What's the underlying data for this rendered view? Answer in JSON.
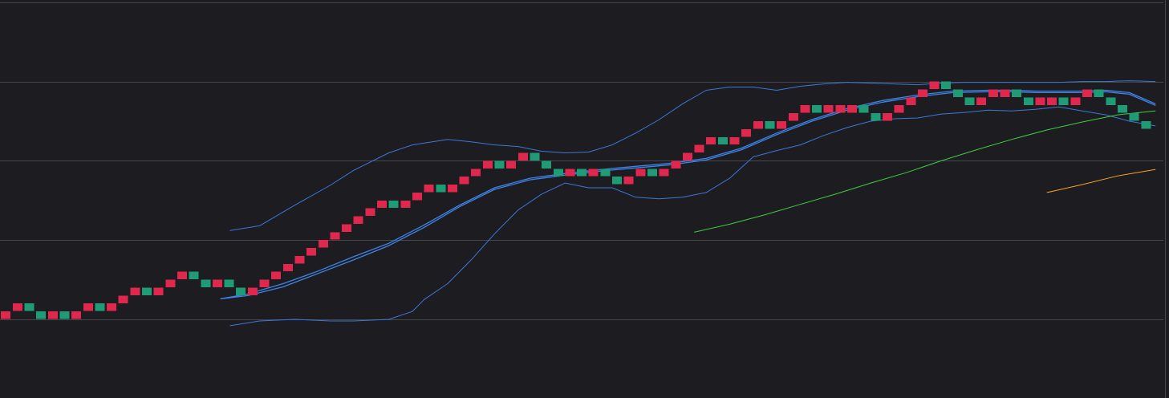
{
  "chart_data": {
    "type": "renko",
    "title": "",
    "xlabel": "",
    "ylabel": "",
    "grid": true,
    "xlim": [
      0,
      100
    ],
    "ylim": [
      -5,
      45
    ],
    "gridlines_y": [
      0,
      10,
      20,
      30,
      40
    ],
    "colors": {
      "background": "#1c1c21",
      "grid": "#46464d",
      "up_brick": "#e0284f",
      "down_brick": "#1f9c76",
      "bollinger": "#3b78d8",
      "moving_average_mid": "#3f84e5",
      "moving_average_slow": "#3ecf3e",
      "moving_average_long": "#f5a623"
    },
    "brick_size": 1,
    "bricks": [
      {
        "i": 0,
        "top": 1,
        "dir": "up"
      },
      {
        "i": 1,
        "top": 2,
        "dir": "up"
      },
      {
        "i": 2,
        "top": 2,
        "dir": "down"
      },
      {
        "i": 3,
        "top": 1,
        "dir": "down"
      },
      {
        "i": 4,
        "top": 1,
        "dir": "up"
      },
      {
        "i": 5,
        "top": 1,
        "dir": "down"
      },
      {
        "i": 6,
        "top": 1,
        "dir": "up"
      },
      {
        "i": 7,
        "top": 2,
        "dir": "up"
      },
      {
        "i": 8,
        "top": 2,
        "dir": "down"
      },
      {
        "i": 9,
        "top": 2,
        "dir": "up"
      },
      {
        "i": 10,
        "top": 3,
        "dir": "up"
      },
      {
        "i": 11,
        "top": 4,
        "dir": "up"
      },
      {
        "i": 12,
        "top": 4,
        "dir": "down"
      },
      {
        "i": 13,
        "top": 4,
        "dir": "up"
      },
      {
        "i": 14,
        "top": 5,
        "dir": "up"
      },
      {
        "i": 15,
        "top": 6,
        "dir": "up"
      },
      {
        "i": 16,
        "top": 6,
        "dir": "down"
      },
      {
        "i": 17,
        "top": 5,
        "dir": "down"
      },
      {
        "i": 18,
        "top": 5,
        "dir": "up"
      },
      {
        "i": 19,
        "top": 5,
        "dir": "down"
      },
      {
        "i": 20,
        "top": 4,
        "dir": "down"
      },
      {
        "i": 21,
        "top": 4,
        "dir": "up"
      },
      {
        "i": 22,
        "top": 5,
        "dir": "up"
      },
      {
        "i": 23,
        "top": 6,
        "dir": "up"
      },
      {
        "i": 24,
        "top": 7,
        "dir": "up"
      },
      {
        "i": 25,
        "top": 8,
        "dir": "up"
      },
      {
        "i": 26,
        "top": 9,
        "dir": "up"
      },
      {
        "i": 27,
        "top": 10,
        "dir": "up"
      },
      {
        "i": 28,
        "top": 11,
        "dir": "up"
      },
      {
        "i": 29,
        "top": 12,
        "dir": "up"
      },
      {
        "i": 30,
        "top": 13,
        "dir": "up"
      },
      {
        "i": 31,
        "top": 14,
        "dir": "up"
      },
      {
        "i": 32,
        "top": 15,
        "dir": "up"
      },
      {
        "i": 33,
        "top": 15,
        "dir": "down"
      },
      {
        "i": 34,
        "top": 15,
        "dir": "up"
      },
      {
        "i": 35,
        "top": 16,
        "dir": "up"
      },
      {
        "i": 36,
        "top": 17,
        "dir": "up"
      },
      {
        "i": 37,
        "top": 17,
        "dir": "down"
      },
      {
        "i": 38,
        "top": 17,
        "dir": "up"
      },
      {
        "i": 39,
        "top": 18,
        "dir": "up"
      },
      {
        "i": 40,
        "top": 19,
        "dir": "up"
      },
      {
        "i": 41,
        "top": 20,
        "dir": "up"
      },
      {
        "i": 42,
        "top": 20,
        "dir": "down"
      },
      {
        "i": 43,
        "top": 20,
        "dir": "up"
      },
      {
        "i": 44,
        "top": 21,
        "dir": "up"
      },
      {
        "i": 45,
        "top": 21,
        "dir": "down"
      },
      {
        "i": 46,
        "top": 20,
        "dir": "down"
      },
      {
        "i": 47,
        "top": 19,
        "dir": "down"
      },
      {
        "i": 48,
        "top": 19,
        "dir": "up"
      },
      {
        "i": 49,
        "top": 19,
        "dir": "down"
      },
      {
        "i": 50,
        "top": 19,
        "dir": "up"
      },
      {
        "i": 51,
        "top": 19,
        "dir": "down"
      },
      {
        "i": 52,
        "top": 18,
        "dir": "down"
      },
      {
        "i": 53,
        "top": 18,
        "dir": "up"
      },
      {
        "i": 54,
        "top": 19,
        "dir": "up"
      },
      {
        "i": 55,
        "top": 19,
        "dir": "down"
      },
      {
        "i": 56,
        "top": 19,
        "dir": "up"
      },
      {
        "i": 57,
        "top": 20,
        "dir": "up"
      },
      {
        "i": 58,
        "top": 21,
        "dir": "up"
      },
      {
        "i": 59,
        "top": 22,
        "dir": "up"
      },
      {
        "i": 60,
        "top": 23,
        "dir": "up"
      },
      {
        "i": 61,
        "top": 23,
        "dir": "down"
      },
      {
        "i": 62,
        "top": 23,
        "dir": "up"
      },
      {
        "i": 63,
        "top": 24,
        "dir": "up"
      },
      {
        "i": 64,
        "top": 25,
        "dir": "up"
      },
      {
        "i": 65,
        "top": 25,
        "dir": "down"
      },
      {
        "i": 66,
        "top": 25,
        "dir": "up"
      },
      {
        "i": 67,
        "top": 26,
        "dir": "up"
      },
      {
        "i": 68,
        "top": 27,
        "dir": "up"
      },
      {
        "i": 69,
        "top": 27,
        "dir": "down"
      },
      {
        "i": 70,
        "top": 27,
        "dir": "up"
      },
      {
        "i": 71,
        "top": 27,
        "dir": "up"
      },
      {
        "i": 72,
        "top": 27,
        "dir": "up"
      },
      {
        "i": 73,
        "top": 27,
        "dir": "down"
      },
      {
        "i": 74,
        "top": 26,
        "dir": "down"
      },
      {
        "i": 75,
        "top": 26,
        "dir": "up"
      },
      {
        "i": 76,
        "top": 27,
        "dir": "up"
      },
      {
        "i": 77,
        "top": 28,
        "dir": "up"
      },
      {
        "i": 78,
        "top": 29,
        "dir": "up"
      },
      {
        "i": 79,
        "top": 30,
        "dir": "up"
      },
      {
        "i": 80,
        "top": 30,
        "dir": "down"
      },
      {
        "i": 81,
        "top": 29,
        "dir": "down"
      },
      {
        "i": 82,
        "top": 28,
        "dir": "down"
      },
      {
        "i": 83,
        "top": 28,
        "dir": "up"
      },
      {
        "i": 84,
        "top": 29,
        "dir": "up"
      },
      {
        "i": 85,
        "top": 29,
        "dir": "up"
      },
      {
        "i": 86,
        "top": 29,
        "dir": "down"
      },
      {
        "i": 87,
        "top": 28,
        "dir": "down"
      },
      {
        "i": 88,
        "top": 28,
        "dir": "up"
      },
      {
        "i": 89,
        "top": 28,
        "dir": "up"
      },
      {
        "i": 90,
        "top": 28,
        "dir": "down"
      },
      {
        "i": 91,
        "top": 28,
        "dir": "up"
      },
      {
        "i": 92,
        "top": 29,
        "dir": "up"
      },
      {
        "i": 93,
        "top": 29,
        "dir": "down"
      },
      {
        "i": 94,
        "top": 28,
        "dir": "down"
      },
      {
        "i": 95,
        "top": 27,
        "dir": "down"
      },
      {
        "i": 96,
        "top": 26,
        "dir": "down"
      },
      {
        "i": 97,
        "top": 25,
        "dir": "down"
      }
    ],
    "series": [
      {
        "type": "line",
        "role": "upper-band",
        "color": "#3b78d8",
        "x": [
          19.5,
          22,
          25,
          28,
          30,
          33,
          35,
          38,
          40,
          42,
          44,
          46,
          48,
          50,
          52,
          54,
          56,
          58,
          60,
          62,
          64,
          66,
          68,
          70,
          72,
          74,
          76,
          78,
          80,
          82,
          84,
          86,
          88,
          90,
          92,
          94,
          96,
          98.2
        ],
        "y": [
          11.2,
          11.8,
          14.4,
          16.9,
          18.8,
          21.0,
          22.0,
          22.7,
          22.4,
          22.0,
          21.8,
          21.2,
          21.0,
          21.1,
          22.0,
          23.5,
          25.2,
          27.2,
          28.9,
          29.3,
          29.3,
          28.9,
          29.4,
          29.7,
          29.9,
          29.8,
          29.7,
          29.6,
          29.8,
          29.9,
          29.9,
          29.9,
          29.9,
          29.9,
          30.0,
          30.0,
          30.1,
          30.0
        ]
      },
      {
        "type": "line",
        "role": "middle-band",
        "color": "#3f84e5",
        "x": [
          18.7,
          21,
          24,
          27,
          30,
          33,
          36,
          39,
          42,
          45,
          48,
          51,
          54,
          57,
          60,
          63,
          66,
          69,
          72,
          75,
          78,
          81,
          84,
          86,
          88,
          90,
          92,
          94,
          96,
          98.2
        ],
        "y": [
          2.6,
          3.2,
          4.5,
          6.1,
          7.9,
          9.6,
          11.9,
          14.4,
          16.6,
          17.8,
          18.4,
          18.9,
          19.3,
          19.7,
          20.3,
          21.6,
          23.5,
          25.2,
          26.6,
          27.6,
          28.3,
          28.8,
          28.9,
          28.9,
          28.8,
          28.8,
          28.8,
          28.9,
          28.6,
          27.2
        ]
      },
      {
        "type": "line",
        "role": "middle-band-2",
        "color": "#3f84e5",
        "x": [
          18.7,
          21,
          24,
          27,
          30,
          33,
          36,
          39,
          42,
          45,
          48,
          51,
          54,
          57,
          60,
          63,
          66,
          69,
          72,
          75,
          78,
          81,
          84,
          86,
          88,
          90,
          92,
          94,
          96,
          98.2
        ],
        "y": [
          2.6,
          3.0,
          4.1,
          5.8,
          7.5,
          9.3,
          11.6,
          14.2,
          16.4,
          17.6,
          18.2,
          18.7,
          19.1,
          19.5,
          20.1,
          21.4,
          23.3,
          25.0,
          26.4,
          27.4,
          28.1,
          28.6,
          28.7,
          28.7,
          28.6,
          28.6,
          28.6,
          28.7,
          28.4,
          27.0
        ]
      },
      {
        "type": "line",
        "role": "lower-band",
        "color": "#3b78d8",
        "x": [
          19.5,
          22,
          25,
          28,
          30,
          33,
          35,
          36,
          38,
          40,
          42,
          44,
          46,
          48,
          50,
          52,
          54,
          56,
          58,
          60,
          62,
          64,
          66,
          68,
          70,
          72,
          74,
          76,
          78,
          80,
          82,
          84,
          86,
          88,
          90,
          92,
          94,
          96,
          98.2
        ],
        "y": [
          -0.8,
          -0.2,
          0.0,
          -0.2,
          -0.2,
          0.0,
          1.0,
          2.5,
          4.5,
          7.5,
          10.8,
          13.8,
          15.8,
          17.2,
          16.6,
          16.6,
          15.4,
          15.2,
          15.4,
          16.0,
          17.8,
          20.5,
          21.3,
          22.0,
          23.2,
          24.2,
          25.0,
          25.3,
          25.4,
          25.9,
          26.1,
          26.4,
          26.3,
          26.5,
          26.8,
          26.3,
          25.8,
          25.0,
          24.4
        ]
      },
      {
        "type": "line",
        "role": "slow-moving-average",
        "color": "#3ecf3e",
        "x": [
          59,
          62,
          65,
          68,
          71,
          74,
          77,
          80,
          83,
          86,
          89,
          92,
          95,
          98.2
        ],
        "y": [
          11.0,
          12.0,
          13.2,
          14.5,
          15.8,
          17.2,
          18.5,
          20.0,
          21.4,
          22.7,
          23.9,
          24.9,
          25.8,
          26.3
        ]
      },
      {
        "type": "line",
        "role": "long-moving-average",
        "color": "#f5a623",
        "x": [
          89,
          92,
          95,
          98.2
        ],
        "y": [
          16.0,
          17.0,
          18.1,
          18.9
        ]
      }
    ]
  }
}
